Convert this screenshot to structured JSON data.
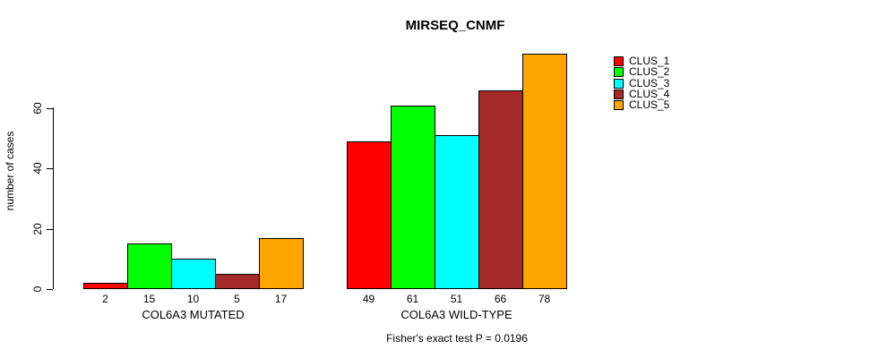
{
  "chart_data": {
    "type": "bar",
    "title": "MIRSEQ_CNMF",
    "ylabel": "number of cases",
    "xlabel": "",
    "footnote": "Fisher's exact test P = 0.0196",
    "ylim": [
      0,
      80
    ],
    "yticks": [
      0,
      20,
      40,
      60
    ],
    "grid": false,
    "legend_position": "right-outside",
    "bar_value_labels_shown": true,
    "categories": [
      "COL6A3 MUTATED",
      "COL6A3 WILD-TYPE"
    ],
    "series": [
      {
        "name": "CLUS_1",
        "color": "#FF0000",
        "values": [
          2,
          49
        ]
      },
      {
        "name": "CLUS_2",
        "color": "#00FF00",
        "values": [
          15,
          61
        ]
      },
      {
        "name": "CLUS_3",
        "color": "#00FFFF",
        "values": [
          10,
          51
        ]
      },
      {
        "name": "CLUS_4",
        "color": "#A52A2A",
        "values": [
          5,
          66
        ]
      },
      {
        "name": "CLUS_5",
        "color": "#FFA500",
        "values": [
          17,
          78
        ]
      }
    ],
    "axis_color": "#000000",
    "background_color": "#FFFFFF"
  }
}
